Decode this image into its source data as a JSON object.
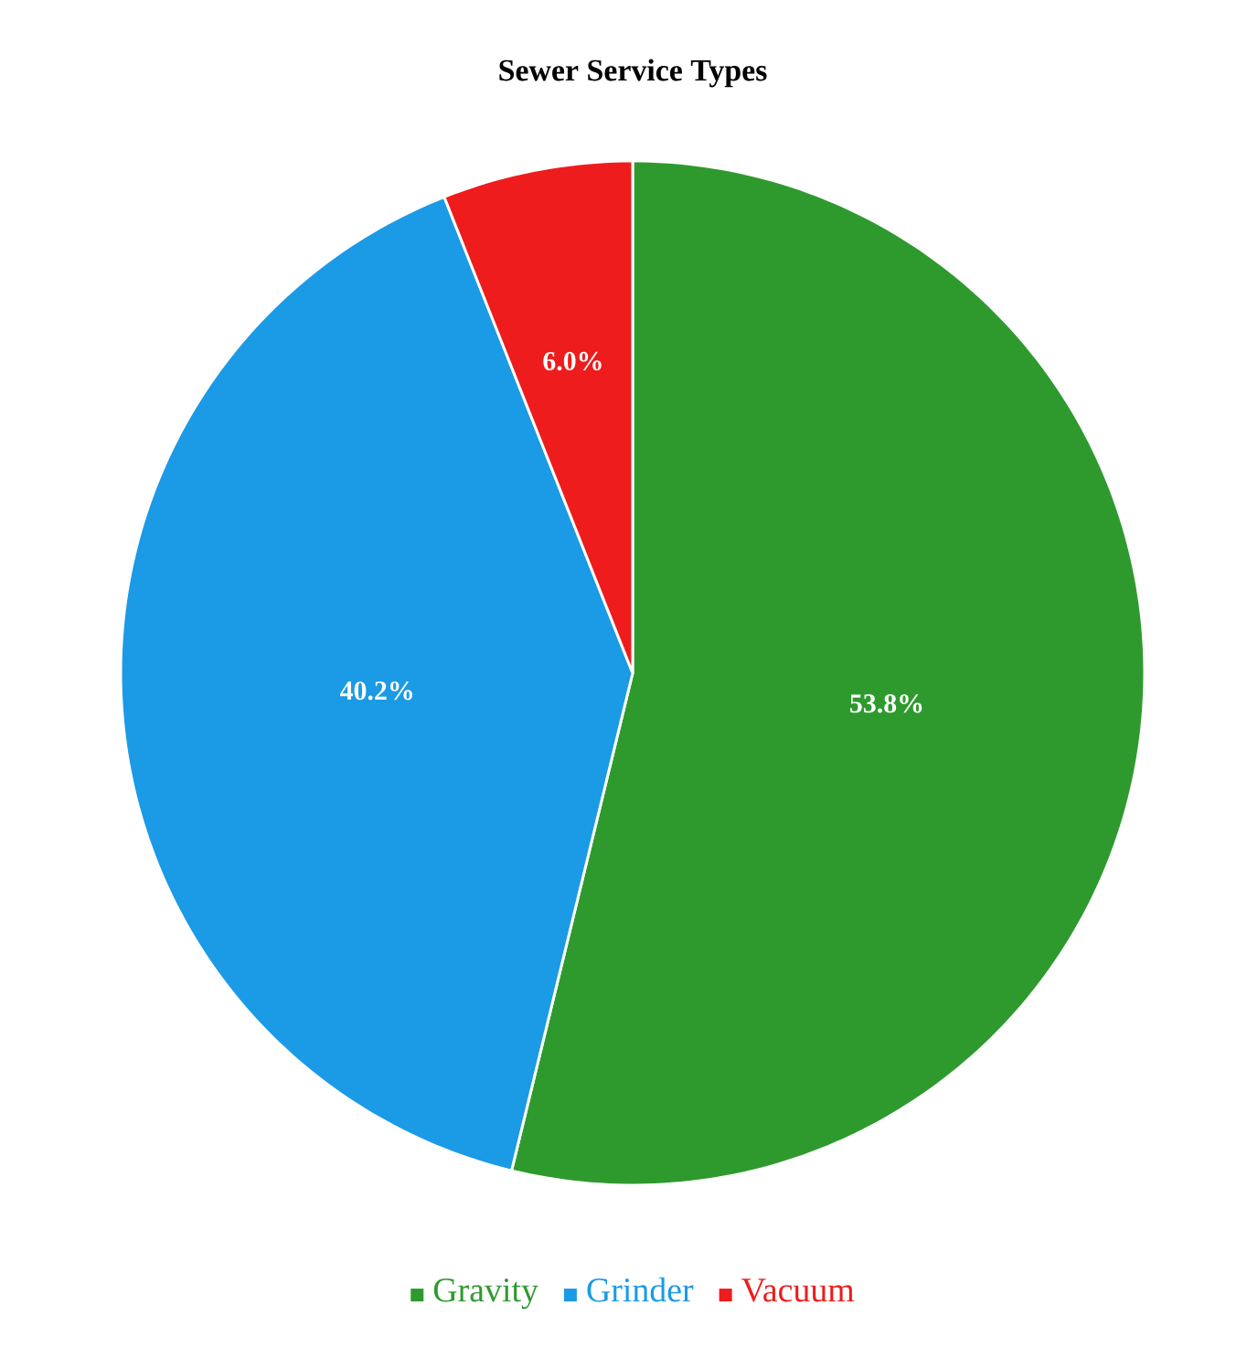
{
  "chart_data": {
    "type": "pie",
    "title": "Sewer Service Types",
    "categories": [
      "Gravity",
      "Grinder",
      "Vacuum"
    ],
    "values": [
      53.8,
      40.2,
      6.0
    ],
    "value_labels": [
      "53.8%",
      "40.2%",
      "6.0%"
    ],
    "colors": [
      "#2e9a2e",
      "#1b9ae6",
      "#ee1c1c"
    ],
    "legend": "bottom"
  }
}
